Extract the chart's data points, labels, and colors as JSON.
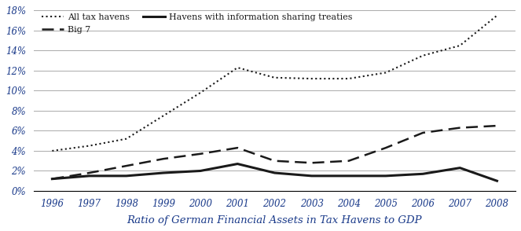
{
  "years": [
    1996,
    1997,
    1998,
    1999,
    2000,
    2001,
    2002,
    2003,
    2004,
    2005,
    2006,
    2007,
    2008
  ],
  "all_tax_havens": [
    4.0,
    4.5,
    5.2,
    7.5,
    9.8,
    12.3,
    11.3,
    11.2,
    11.2,
    11.8,
    13.5,
    14.5,
    17.5
  ],
  "big7": [
    1.2,
    1.8,
    2.5,
    3.2,
    3.7,
    4.3,
    3.0,
    2.8,
    3.0,
    4.3,
    5.8,
    6.3,
    6.5
  ],
  "info_sharing": [
    1.2,
    1.5,
    1.5,
    1.8,
    2.0,
    2.7,
    1.8,
    1.5,
    1.5,
    1.5,
    1.7,
    2.3,
    1.0
  ],
  "ylabel_vals": [
    0,
    2,
    4,
    6,
    8,
    10,
    12,
    14,
    16,
    18
  ],
  "ylim": [
    0,
    18.5
  ],
  "xlim": [
    1995.5,
    2008.5
  ],
  "title": "Ratio of German Financial Assets in Tax Havens to GDP",
  "legend_all": "All tax havens",
  "legend_big7": "Big 7",
  "legend_info": "Havens with information sharing treaties",
  "line_color": "#1a1a1a",
  "label_color": "#1a3a8a",
  "background_color": "#ffffff",
  "grid_color": "#aaaaaa"
}
